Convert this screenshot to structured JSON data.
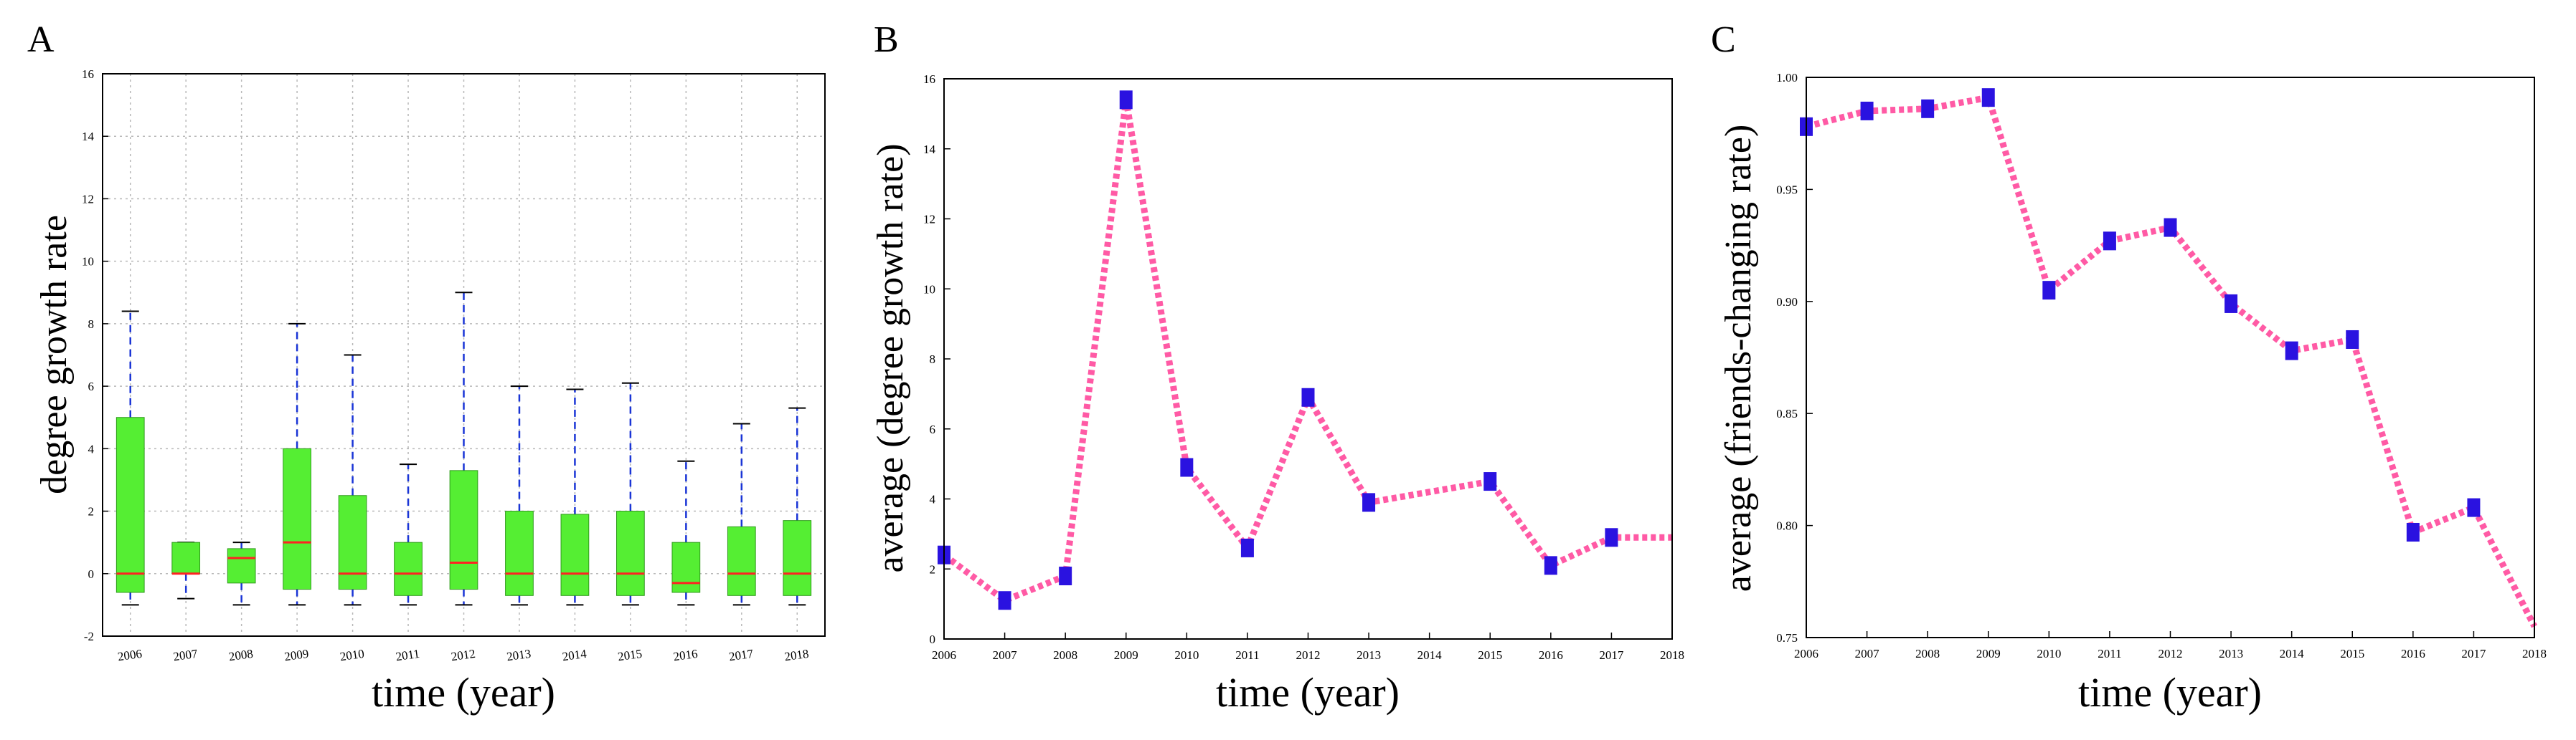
{
  "chart_data": [
    {
      "panel": "A",
      "type": "box",
      "xlabel": "time (year)",
      "ylabel": "degree growth rate",
      "ylim": [
        -2,
        16
      ],
      "yticks": [
        -2,
        0,
        2,
        4,
        6,
        8,
        10,
        12,
        14,
        16
      ],
      "categories": [
        "2006",
        "2007",
        "2008",
        "2009",
        "2010",
        "2011",
        "2012",
        "2013",
        "2014",
        "2015",
        "2016",
        "2017",
        "2018"
      ],
      "boxes": [
        {
          "q1": -0.6,
          "median": 0.0,
          "q3": 5.0,
          "whisker_low": -1.0,
          "whisker_high": 8.4
        },
        {
          "q1": 0.0,
          "median": 0.0,
          "q3": 1.0,
          "whisker_low": -0.8,
          "whisker_high": 1.0
        },
        {
          "q1": -0.3,
          "median": 0.5,
          "q3": 0.8,
          "whisker_low": -1.0,
          "whisker_high": 1.0
        },
        {
          "q1": -0.5,
          "median": 1.0,
          "q3": 4.0,
          "whisker_low": -1.0,
          "whisker_high": 8.0
        },
        {
          "q1": -0.5,
          "median": 0.0,
          "q3": 2.5,
          "whisker_low": -1.0,
          "whisker_high": 7.0
        },
        {
          "q1": -0.7,
          "median": 0.0,
          "q3": 1.0,
          "whisker_low": -1.0,
          "whisker_high": 3.5
        },
        {
          "q1": -0.5,
          "median": 0.35,
          "q3": 3.3,
          "whisker_low": -1.0,
          "whisker_high": 9.0
        },
        {
          "q1": -0.7,
          "median": 0.0,
          "q3": 2.0,
          "whisker_low": -1.0,
          "whisker_high": 6.0
        },
        {
          "q1": -0.7,
          "median": 0.0,
          "q3": 1.9,
          "whisker_low": -1.0,
          "whisker_high": 5.9
        },
        {
          "q1": -0.7,
          "median": 0.0,
          "q3": 2.0,
          "whisker_low": -1.0,
          "whisker_high": 6.1
        },
        {
          "q1": -0.6,
          "median": -0.3,
          "q3": 1.0,
          "whisker_low": -1.0,
          "whisker_high": 3.6
        },
        {
          "q1": -0.7,
          "median": 0.0,
          "q3": 1.5,
          "whisker_low": -1.0,
          "whisker_high": 4.8
        },
        {
          "q1": -0.7,
          "median": 0.0,
          "q3": 1.7,
          "whisker_low": -1.0,
          "whisker_high": 5.3
        }
      ],
      "grid": true,
      "colors": {
        "box": "#55ee33",
        "median": "#ff2222",
        "whisker": "#1a35d6"
      }
    },
    {
      "panel": "B",
      "type": "line",
      "xlabel": "time (year)",
      "ylabel": "average (degree growth rate)",
      "xlim": [
        2006,
        2018
      ],
      "ylim": [
        0,
        16
      ],
      "xticks": [
        2006,
        2007,
        2008,
        2009,
        2010,
        2011,
        2012,
        2013,
        2014,
        2015,
        2016,
        2017,
        2018
      ],
      "yticks": [
        0,
        2,
        4,
        6,
        8,
        10,
        12,
        14,
        16
      ],
      "series": [
        {
          "x": [
            2006,
            2007,
            2008,
            2009,
            2010,
            2011,
            2012,
            2013,
            2015,
            2016,
            2017,
            2018
          ],
          "y": [
            2.4,
            1.1,
            1.8,
            15.4,
            4.9,
            2.6,
            6.9,
            3.9,
            4.5,
            2.1,
            2.9,
            2.9
          ],
          "markers": [
            true,
            true,
            true,
            true,
            true,
            true,
            true,
            true,
            true,
            true,
            true,
            false
          ]
        }
      ],
      "colors": {
        "line": "#ff5aa5",
        "marker": "#2a12e0"
      }
    },
    {
      "panel": "C",
      "type": "line",
      "xlabel": "time (year)",
      "ylabel": "average (friends-changing rate)",
      "xlim": [
        2006,
        2018
      ],
      "ylim": [
        0.75,
        1.0
      ],
      "xticks": [
        2006,
        2007,
        2008,
        2009,
        2010,
        2011,
        2012,
        2013,
        2014,
        2015,
        2016,
        2017,
        2018
      ],
      "yticks": [
        0.75,
        0.8,
        0.85,
        0.9,
        0.95,
        1.0
      ],
      "ytick_labels": [
        "0.75",
        "0.80",
        "0.85",
        "0.90",
        "0.95",
        "1.00"
      ],
      "series": [
        {
          "x": [
            2006,
            2007,
            2008,
            2009,
            2010,
            2011,
            2012,
            2013,
            2014,
            2015,
            2016,
            2017,
            2018
          ],
          "y": [
            0.978,
            0.985,
            0.986,
            0.991,
            0.905,
            0.927,
            0.933,
            0.899,
            0.878,
            0.883,
            0.797,
            0.808,
            0.755
          ],
          "markers": [
            true,
            true,
            true,
            true,
            true,
            true,
            true,
            true,
            true,
            true,
            true,
            true,
            false
          ]
        }
      ],
      "colors": {
        "line": "#ff5aa5",
        "marker": "#2a12e0"
      }
    }
  ]
}
